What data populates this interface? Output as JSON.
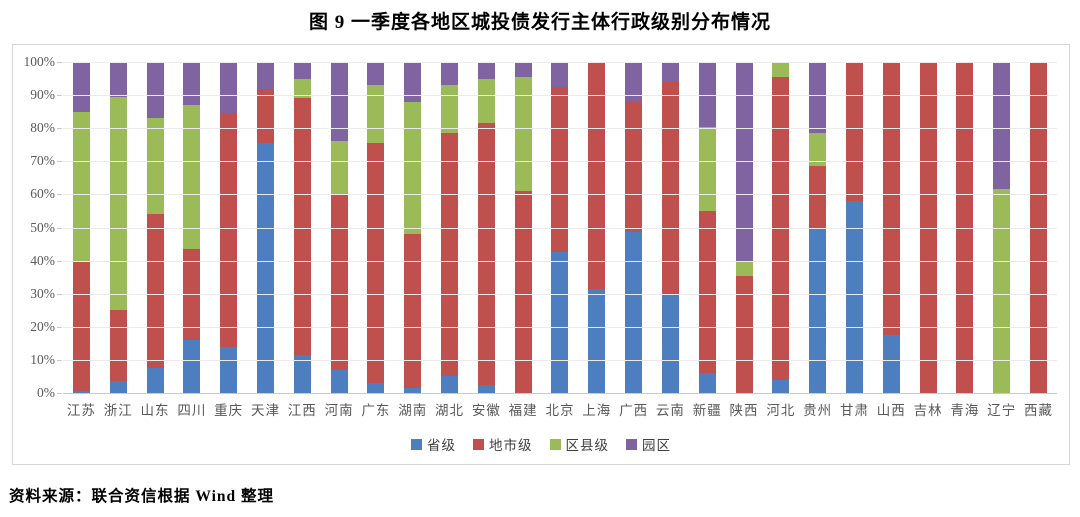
{
  "title": "图 9  一季度各地区城投债发行主体行政级别分布情况",
  "source_note": "资料来源：联合资信根据 Wind 整理",
  "colors": {
    "provincial_blue": "#4D7EBF",
    "prefecture_red": "#C0504D",
    "county_green": "#9BBB59",
    "park_purple": "#8064A2",
    "gridline": "#EBEBEB",
    "axis_line": "#C9C9C9",
    "frame_border": "#D6D6D6",
    "axis_text": "#595959"
  },
  "chart_data": {
    "type": "bar",
    "stacked": true,
    "unit": "percent",
    "title": "图 9  一季度各地区城投债发行主体行政级别分布情况",
    "xlabel": "",
    "ylabel": "",
    "ylim": [
      0,
      100
    ],
    "y_ticks": [
      "0%",
      "10%",
      "20%",
      "30%",
      "40%",
      "50%",
      "60%",
      "70%",
      "80%",
      "90%",
      "100%"
    ],
    "grid": true,
    "legend_position": "bottom",
    "categories": [
      "江苏",
      "浙江",
      "山东",
      "四川",
      "重庆",
      "天津",
      "江西",
      "河南",
      "广东",
      "湖南",
      "湖北",
      "安徽",
      "福建",
      "北京",
      "上海",
      "广西",
      "云南",
      "新疆",
      "陕西",
      "河北",
      "贵州",
      "甘肃",
      "山西",
      "吉林",
      "青海",
      "辽宁",
      "西藏"
    ],
    "series": [
      {
        "name": "省级",
        "key": "provincial",
        "color": "#4D7EBF",
        "values": [
          0.5,
          3.5,
          7.5,
          16,
          14,
          75.5,
          11.5,
          7,
          3,
          1.5,
          5,
          2.5,
          0,
          42.5,
          31.5,
          48.5,
          29.5,
          6,
          0,
          4,
          49.5,
          58,
          17.5,
          0,
          0,
          0,
          0
        ]
      },
      {
        "name": "地市级",
        "key": "prefecture",
        "color": "#C0504D",
        "values": [
          39,
          21.5,
          46.5,
          27.5,
          70.5,
          16.5,
          77.5,
          53,
          72.5,
          46.5,
          73.5,
          79,
          61,
          50,
          68.5,
          39.5,
          64.5,
          49,
          35.5,
          91.5,
          19,
          42,
          82.5,
          100,
          100,
          0,
          100
        ]
      },
      {
        "name": "区县级",
        "key": "county",
        "color": "#9BBB59",
        "values": [
          45.5,
          64.5,
          29,
          43.5,
          0,
          0,
          6,
          16,
          17.5,
          40,
          14.5,
          13.5,
          34.5,
          0,
          0,
          0,
          0,
          25.5,
          4.5,
          4.5,
          10,
          0,
          0,
          0,
          0,
          61.5,
          0
        ]
      },
      {
        "name": "园区",
        "key": "park",
        "color": "#8064A2",
        "values": [
          15,
          10.5,
          17,
          13,
          15.5,
          8,
          5,
          24,
          7,
          12,
          7,
          5,
          4.5,
          7.5,
          0,
          12,
          6,
          19.5,
          60,
          0,
          21.5,
          0,
          0,
          0,
          0,
          38.5,
          0
        ]
      }
    ]
  }
}
